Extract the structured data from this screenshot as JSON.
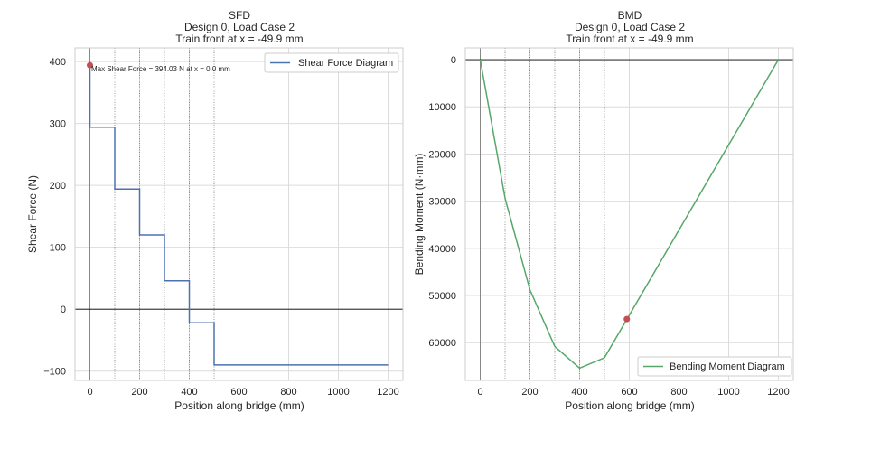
{
  "chart_data": [
    {
      "type": "line",
      "title": "SFD",
      "subtitle": [
        "Design 0, Load Case 2",
        "Train front at x = -49.9 mm"
      ],
      "xlabel": "Position along bridge (mm)",
      "ylabel": "Shear Force (N)",
      "xlim": [
        -60,
        1260
      ],
      "ylim": [
        -115,
        422
      ],
      "xticks": [
        0,
        200,
        400,
        600,
        800,
        1000,
        1200
      ],
      "yticks": [
        400,
        300,
        200,
        100,
        0,
        -100
      ],
      "ytick_labels": [
        "400",
        "300",
        "200",
        "100",
        "0",
        "−100"
      ],
      "grid": true,
      "zero_line": 0,
      "vlines": [
        0,
        100,
        200,
        300,
        400,
        500
      ],
      "legend": {
        "placement": "upper right",
        "entries": [
          "Shear Force Diagram"
        ]
      },
      "series": [
        {
          "name": "Shear Force Diagram",
          "color": "#4c72b0",
          "x": [
            0,
            0,
            100,
            100,
            200,
            200,
            300,
            300,
            400,
            400,
            500,
            500,
            1200
          ],
          "y": [
            394.03,
            294,
            294,
            194,
            194,
            120,
            120,
            46,
            46,
            -22,
            -22,
            -90,
            -90
          ]
        }
      ],
      "marker": {
        "x": 0,
        "y": 394.03,
        "color": "#c44e52"
      },
      "annotation": "Max Shear Force = 394.03 N at x = 0.0 mm"
    },
    {
      "type": "line",
      "title": "BMD",
      "subtitle": [
        "Design 0, Load Case 2",
        "Train front at x = -49.9 mm"
      ],
      "xlabel": "Position along bridge (mm)",
      "ylabel": "Bending Moment (N·mm)",
      "xlim": [
        -60,
        1260
      ],
      "ylim": [
        -2500,
        68000
      ],
      "y_inverted": true,
      "xticks": [
        0,
        200,
        400,
        600,
        800,
        1000,
        1200
      ],
      "yticks": [
        0,
        10000,
        20000,
        30000,
        40000,
        50000,
        60000
      ],
      "grid": true,
      "zero_line": 0,
      "vlines": [
        0,
        100,
        200,
        300,
        400,
        500
      ],
      "legend": {
        "placement": "lower right",
        "entries": [
          "Bending Moment Diagram"
        ]
      },
      "series": [
        {
          "name": "Bending Moment Diagram",
          "color": "#55a868",
          "x": [
            0,
            100,
            200,
            300,
            400,
            500,
            1200
          ],
          "y": [
            0,
            29400,
            48800,
            60800,
            65400,
            63200,
            0
          ]
        }
      ],
      "marker": {
        "x": 590,
        "y": 55000,
        "color": "#c44e52"
      }
    }
  ]
}
